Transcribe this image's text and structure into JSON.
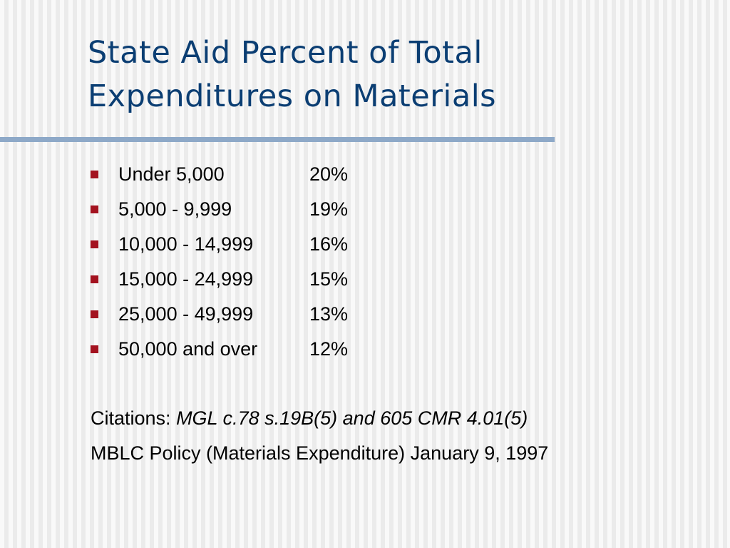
{
  "slide": {
    "title_line1": "State Aid Percent of Total",
    "title_line2": "Expenditures on Materials"
  },
  "bullets": [
    {
      "range": "Under 5,000",
      "percent": "20%"
    },
    {
      "range": "5,000 - 9,999",
      "percent": "19%"
    },
    {
      "range": "10,000 - 14,999",
      "percent": "16%"
    },
    {
      "range": "15,000 - 24,999",
      "percent": "15%"
    },
    {
      "range": "25,000 - 49,999",
      "percent": "13%"
    },
    {
      "range": "50,000 and over",
      "percent": "12%"
    }
  ],
  "citations": {
    "label": "Citations: ",
    "reference": "MGL c.78 s.19B(5) and 605 CMR 4.01(5)",
    "policy": "MBLC Policy (Materials Expenditure) January 9, 1997"
  },
  "colors": {
    "title": "#0b3e73",
    "rule": "#8ea9c8",
    "bullet": "#a3121f"
  }
}
